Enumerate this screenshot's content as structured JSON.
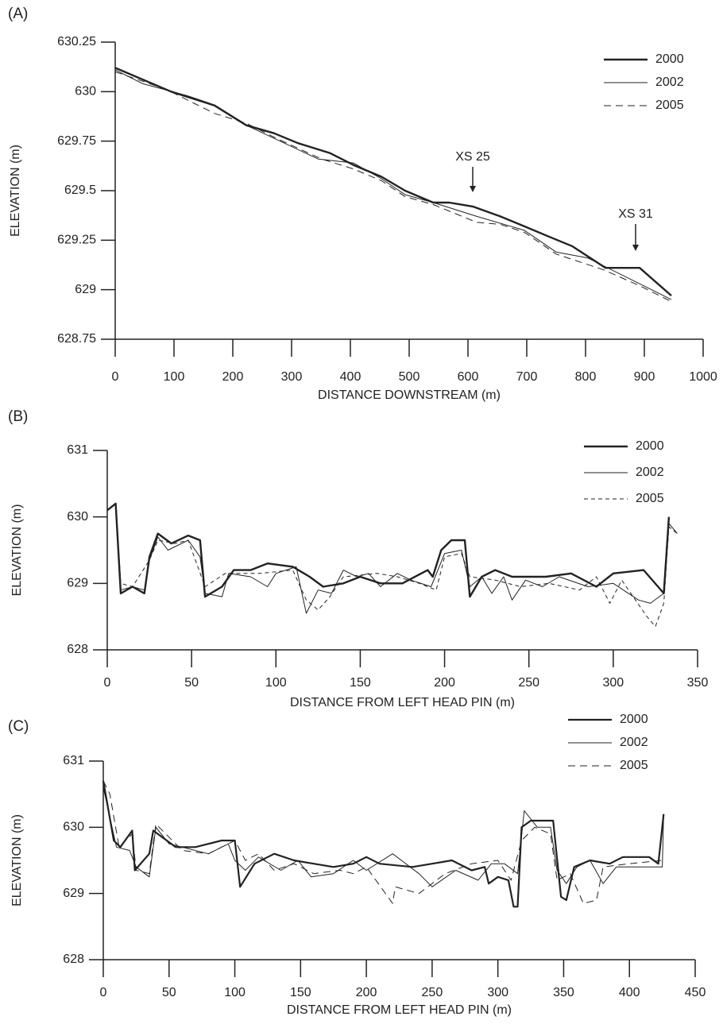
{
  "chart_data": [
    {
      "type": "line",
      "label": "(A)",
      "xlabel": "DISTANCE DOWNSTREAM (m)",
      "ylabel": "ELEVATION (m)",
      "xlim": [
        0,
        1000
      ],
      "xticks": [
        0,
        100,
        200,
        300,
        400,
        500,
        600,
        700,
        800,
        900,
        1000
      ],
      "ylim": [
        628.75,
        630.25
      ],
      "yticks": [
        628.75,
        629,
        629.25,
        629.5,
        629.75,
        630,
        630.25
      ],
      "legend": "upper right",
      "annotations": [
        "XS 25",
        "XS 31"
      ],
      "series": [
        {
          "name": "2000",
          "color": "#222",
          "width": 2.4,
          "dash": "none",
          "x": [
            0,
            95,
            169,
            223,
            270,
            311,
            365,
            405,
            453,
            493,
            541,
            568,
            608,
            655,
            696,
            736,
            777,
            834,
            892,
            946
          ],
          "values": [
            630.12,
            630.0,
            629.93,
            629.83,
            629.79,
            629.74,
            629.69,
            629.63,
            629.57,
            629.5,
            629.44,
            629.44,
            629.42,
            629.37,
            629.32,
            629.27,
            629.22,
            629.11,
            629.11,
            628.97
          ]
        },
        {
          "name": "2002",
          "color": "#222",
          "width": 1,
          "dash": "none",
          "x": [
            0,
            47,
            122,
            162,
            223,
            345,
            405,
            453,
            493,
            541,
            615,
            696,
            750,
            804,
            892,
            946
          ],
          "values": [
            630.11,
            630.04,
            629.98,
            629.94,
            629.83,
            629.66,
            629.64,
            629.56,
            629.48,
            629.44,
            629.37,
            629.3,
            629.19,
            629.16,
            629.03,
            628.95
          ]
        },
        {
          "name": "2005",
          "color": "#222",
          "width": 1,
          "dash": "9 6",
          "x": [
            0,
            88,
            128,
            169,
            223,
            277,
            351,
            405,
            453,
            493,
            541,
            615,
            655,
            696,
            750,
            831,
            892,
            946
          ],
          "values": [
            630.1,
            630.01,
            629.95,
            629.89,
            629.84,
            629.76,
            629.66,
            629.61,
            629.55,
            629.47,
            629.43,
            629.34,
            629.33,
            629.29,
            629.18,
            629.1,
            629.02,
            628.94
          ]
        }
      ]
    },
    {
      "type": "line",
      "label": "(B)",
      "xlabel": "DISTANCE FROM LEFT HEAD PIN (m)",
      "ylabel": "ELEVATION (m)",
      "xlim": [
        0,
        350
      ],
      "xticks": [
        0,
        50,
        100,
        150,
        200,
        250,
        300,
        350
      ],
      "ylim": [
        628,
        631
      ],
      "yticks": [
        628,
        629,
        630,
        631
      ],
      "legend": "upper right",
      "series": [
        {
          "name": "2000",
          "color": "#222",
          "width": 2.4,
          "dash": "none",
          "x": [
            0,
            5,
            8,
            15,
            22,
            25,
            30,
            38,
            48,
            55,
            58,
            68,
            75,
            85,
            95,
            110,
            120,
            128,
            140,
            150,
            162,
            175,
            190,
            193,
            198,
            204,
            212,
            215,
            222,
            230,
            240,
            260,
            275,
            290,
            300,
            318,
            330,
            333
          ],
          "values": [
            630.1,
            630.2,
            628.85,
            628.95,
            628.85,
            629.4,
            629.75,
            629.6,
            629.72,
            629.65,
            628.8,
            628.95,
            629.2,
            629.2,
            629.3,
            629.25,
            629.1,
            628.95,
            629.0,
            629.1,
            629.0,
            629.0,
            629.2,
            629.1,
            629.5,
            629.65,
            629.65,
            628.8,
            629.1,
            629.2,
            629.1,
            629.1,
            629.15,
            628.95,
            629.15,
            629.2,
            628.85,
            630.0
          ]
        },
        {
          "name": "2002",
          "color": "#222",
          "width": 1,
          "dash": "none",
          "x": [
            0,
            5,
            8,
            15,
            22,
            25,
            30,
            36,
            48,
            55,
            58,
            68,
            72,
            85,
            95,
            100,
            112,
            118,
            125,
            133,
            140,
            148,
            155,
            162,
            172,
            180,
            192,
            200,
            210,
            215,
            222,
            228,
            235,
            240,
            248,
            258,
            268,
            285,
            300,
            315,
            322,
            330,
            333,
            338
          ],
          "values": [
            630.1,
            630.2,
            628.9,
            628.95,
            628.9,
            629.35,
            629.7,
            629.5,
            629.65,
            629.4,
            628.85,
            628.8,
            629.15,
            629.1,
            628.95,
            629.15,
            629.25,
            628.55,
            628.9,
            628.85,
            629.2,
            629.1,
            629.15,
            628.95,
            629.15,
            629.05,
            628.95,
            629.45,
            629.5,
            628.95,
            629.1,
            628.85,
            629.1,
            628.75,
            629.05,
            628.95,
            629.1,
            628.95,
            629.0,
            628.75,
            628.7,
            628.85,
            629.9,
            629.75
          ]
        },
        {
          "name": "2005",
          "color": "#222",
          "width": 1,
          "dash": "5 4",
          "x": [
            0,
            5,
            8,
            15,
            25,
            30,
            40,
            48,
            58,
            70,
            90,
            110,
            118,
            125,
            132,
            140,
            160,
            172,
            185,
            195,
            200,
            210,
            215,
            230,
            245,
            262,
            280,
            290,
            298,
            305,
            320,
            325,
            330,
            333,
            338
          ],
          "values": [
            630.1,
            630.2,
            629.0,
            628.95,
            629.35,
            629.65,
            629.6,
            629.65,
            628.95,
            629.15,
            629.15,
            629.2,
            628.75,
            628.6,
            628.8,
            629.1,
            629.15,
            629.1,
            629.0,
            628.9,
            629.4,
            629.45,
            629.1,
            629.05,
            628.95,
            629.0,
            628.9,
            629.1,
            628.7,
            629.05,
            628.5,
            628.35,
            628.7,
            629.85,
            629.75
          ]
        }
      ]
    },
    {
      "type": "line",
      "label": "(C)",
      "xlabel": "DISTANCE FROM LEFT HEAD PIN (m)",
      "ylabel": "ELEVATION (m)",
      "xlim": [
        0,
        450
      ],
      "xticks": [
        0,
        50,
        100,
        150,
        200,
        250,
        300,
        350,
        400,
        450
      ],
      "ylim": [
        628,
        631
      ],
      "yticks": [
        628,
        629,
        630,
        631
      ],
      "legend": "upper right",
      "series": [
        {
          "name": "2000",
          "color": "#222",
          "width": 2.2,
          "dash": "none",
          "x": [
            0,
            8,
            13,
            22,
            24,
            35,
            38,
            55,
            70,
            90,
            100,
            104,
            115,
            130,
            145,
            160,
            175,
            190,
            200,
            210,
            235,
            250,
            265,
            280,
            290,
            293,
            300,
            308,
            312,
            315,
            318,
            325,
            342,
            348,
            352,
            358,
            370,
            385,
            395,
            415,
            422,
            426
          ],
          "values": [
            630.7,
            629.8,
            629.7,
            629.95,
            629.35,
            629.6,
            629.95,
            629.7,
            629.7,
            629.8,
            629.8,
            629.1,
            629.45,
            629.6,
            629.5,
            629.45,
            629.4,
            629.45,
            629.55,
            629.45,
            629.4,
            629.45,
            629.5,
            629.35,
            629.4,
            629.15,
            629.25,
            629.2,
            628.8,
            628.8,
            630.0,
            630.1,
            630.1,
            628.95,
            628.9,
            629.4,
            629.5,
            629.45,
            629.55,
            629.55,
            629.45,
            630.2
          ]
        },
        {
          "name": "2002",
          "color": "#222",
          "width": 1,
          "dash": "none",
          "x": [
            0,
            10,
            20,
            25,
            35,
            40,
            50,
            80,
            95,
            100,
            108,
            118,
            135,
            148,
            158,
            175,
            190,
            200,
            220,
            240,
            250,
            268,
            285,
            295,
            305,
            315,
            320,
            330,
            340,
            345,
            352,
            360,
            370,
            380,
            390,
            410,
            425,
            426
          ],
          "values": [
            630.6,
            629.7,
            629.65,
            629.4,
            629.25,
            630.0,
            629.75,
            629.6,
            629.75,
            629.5,
            629.35,
            629.55,
            629.35,
            629.5,
            629.25,
            629.3,
            629.5,
            629.35,
            629.6,
            629.3,
            629.1,
            629.35,
            629.2,
            629.45,
            629.45,
            629.3,
            630.25,
            630.0,
            630.0,
            629.35,
            629.15,
            629.4,
            629.5,
            629.15,
            629.4,
            629.4,
            629.4,
            630.2
          ]
        },
        {
          "name": "2005",
          "color": "#222",
          "width": 1,
          "dash": "9 6",
          "x": [
            0,
            5,
            12,
            22,
            25,
            35,
            40,
            60,
            80,
            100,
            108,
            118,
            130,
            145,
            160,
            180,
            190,
            200,
            220,
            222,
            240,
            260,
            280,
            300,
            310,
            318,
            328,
            340,
            345,
            355,
            365,
            375,
            380,
            400,
            425
          ],
          "values": [
            630.7,
            630.5,
            629.7,
            629.9,
            629.35,
            629.3,
            630.05,
            629.65,
            629.6,
            629.8,
            629.5,
            629.6,
            629.35,
            629.45,
            629.3,
            629.35,
            629.3,
            629.4,
            628.85,
            629.1,
            629.0,
            629.3,
            629.45,
            629.5,
            629.2,
            629.8,
            630.0,
            629.9,
            629.2,
            629.3,
            628.85,
            628.9,
            629.4,
            629.45,
            629.5
          ]
        }
      ]
    }
  ]
}
